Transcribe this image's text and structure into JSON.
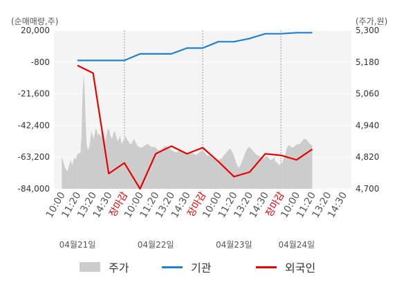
{
  "chart_data": {
    "type": "line",
    "left_axis": {
      "unit": "(순매매량,주)",
      "ticks": [
        20000,
        -800,
        -21600,
        -42400,
        -63200,
        -84000
      ],
      "tick_labels": [
        "20,000",
        "-800",
        "-21,600",
        "-42,400",
        "-63,200",
        "-84,000"
      ],
      "range": [
        -84000,
        20000
      ]
    },
    "right_axis": {
      "unit": "(주가,원)",
      "ticks": [
        5300,
        5180,
        5060,
        4940,
        4820,
        4700
      ],
      "tick_labels": [
        "5,300",
        "5,180",
        "5,060",
        "4,940",
        "4,820",
        "4,700"
      ],
      "range": [
        4700,
        5300
      ]
    },
    "x_ticks": [
      "10:00",
      "11:20",
      "13:20",
      "14:30",
      "장마감",
      "10:00",
      "11:20",
      "13:20",
      "14:30",
      "장마감",
      "10:00",
      "11:20",
      "13:20",
      "14:30",
      "장마감",
      "10:00",
      "11:20",
      "13:20",
      "14:30"
    ],
    "close_tick_color": "#e60000",
    "date_labels": [
      {
        "label": "04월21일",
        "tick_index": 1
      },
      {
        "label": "04월22일",
        "tick_index": 6
      },
      {
        "label": "04월23일",
        "tick_index": 11
      },
      {
        "label": "04월24일",
        "tick_index": 15
      }
    ],
    "grid": true,
    "series": [
      {
        "name": "기관",
        "axis": "left",
        "color": "#1f7fd0",
        "x": [
          1,
          2,
          3,
          4,
          5,
          6,
          7,
          8,
          9,
          10,
          11,
          12,
          13,
          14,
          15,
          16
        ],
        "values": [
          300,
          300,
          300,
          300,
          4600,
          4600,
          4600,
          8400,
          8400,
          12600,
          12600,
          14700,
          17800,
          17800,
          18500,
          18500
        ]
      },
      {
        "name": "외국인",
        "axis": "left",
        "color": "#e60000",
        "x": [
          1,
          2,
          3,
          4,
          5,
          6,
          7,
          8,
          9,
          10,
          11,
          12,
          13,
          14,
          15,
          16
        ],
        "values": [
          -3000,
          -8000,
          -74000,
          -67000,
          -84000,
          -61000,
          -56000,
          -61000,
          -57000,
          -66000,
          -76000,
          -73000,
          -61000,
          -62000,
          -65000,
          -58000
        ]
      },
      {
        "name": "주가",
        "axis": "right",
        "type": "area",
        "color": "#cccccc",
        "segments": [
          {
            "x0": 0.0,
            "x1": 1.0,
            "values": [
              4820,
              4815,
              4800,
              4790,
              4780,
              4775,
              4770,
              4765,
              4780,
              4790,
              4800,
              4810,
              4795,
              4790,
              4805,
              4820,
              4815,
              4810,
              4825,
              4830
            ]
          },
          {
            "x0": 1.0,
            "x1": 2.5,
            "values": [
              4830,
              4835,
              4833,
              4840,
              4900,
              5050,
              5130,
              5080,
              4960,
              4870,
              4850,
              4850,
              4870,
              4900,
              4920,
              4900,
              4890,
              4910,
              4930,
              4920,
              4900,
              4910,
              4905,
              4900
            ]
          },
          {
            "x0": 2.5,
            "x1": 4.8,
            "values": [
              4890,
              4920,
              4910,
              4880,
              4900,
              4930,
              4920,
              4900,
              4890,
              4910,
              4920,
              4900,
              4880,
              4890,
              4900,
              4870,
              4880,
              4890,
              4900,
              4885,
              4880,
              4870,
              4870,
              4880,
              4890,
              4875,
              4870
            ]
          },
          {
            "x0": 4.8,
            "x1": 9.0,
            "values": [
              4865,
              4860,
              4855,
              4858,
              4860,
              4865,
              4870,
              4868,
              4862,
              4858,
              4860,
              4856,
              4850,
              4845,
              4848,
              4852,
              4858,
              4862,
              4860,
              4855,
              4850,
              4845,
              4842,
              4838,
              4840,
              4845,
              4842,
              4838,
              4835,
              4832,
              4835,
              4840,
              4838,
              4835,
              4832,
              4828,
              4832,
              4838,
              4842,
              4845
            ]
          },
          {
            "x0": 9.0,
            "x1": 10.0,
            "values": [
              4845,
              4838,
              4830,
              4825,
              4828,
              4820,
              4815,
              4818,
              4810,
              4808
            ]
          },
          {
            "x0": 10.0,
            "x1": 13.6,
            "values": [
              4808,
              4812,
              4815,
              4822,
              4830,
              4838,
              4845,
              4852,
              4848,
              4835,
              4820,
              4800,
              4785,
              4780,
              4792,
              4808,
              4825,
              4840,
              4852,
              4858,
              4855,
              4848,
              4840,
              4832,
              4828,
              4825,
              4822,
              4818,
              4815,
              4820,
              4825,
              4818,
              4812,
              4808,
              4815,
              4820
            ]
          },
          {
            "x0": 13.6,
            "x1": 14.1,
            "values": [
              4808,
              4802,
              4798,
              4792,
              4790,
              4795,
              4800
            ]
          },
          {
            "x0": 14.1,
            "x1": 16.0,
            "values": [
              4800,
              4815,
              4830,
              4850,
              4862,
              4866,
              4860,
              4856,
              4858,
              4862,
              4866,
              4870,
              4868,
              4872,
              4878,
              4884,
              4890,
              4888,
              4885,
              4878,
              4872,
              4868,
              4865
            ]
          }
        ]
      }
    ]
  },
  "legend": [
    {
      "label": "주가",
      "swatch": "area",
      "color": "#cccccc"
    },
    {
      "label": "기관",
      "swatch": "line",
      "color": "#1f7fd0"
    },
    {
      "label": "외국인",
      "swatch": "line",
      "color": "#e60000"
    }
  ]
}
